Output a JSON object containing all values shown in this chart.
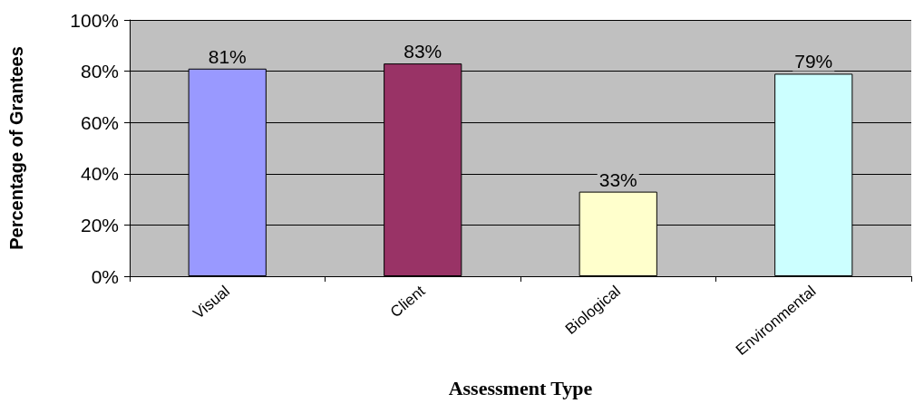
{
  "chart_data": {
    "type": "bar",
    "xlabel": "Assessment Type",
    "ylabel": "Percentage of Grantees",
    "categories": [
      "Visual",
      "Client",
      "Biological",
      "Environmental"
    ],
    "values": [
      81,
      83,
      33,
      79
    ],
    "colors": [
      "#9999ff",
      "#993366",
      "#ffffcc",
      "#ccffff"
    ],
    "value_labels": [
      "81%",
      "83%",
      "33%",
      "79%"
    ],
    "ylim": [
      0,
      100
    ],
    "yticks": [
      {
        "value": 0,
        "label": "0%"
      },
      {
        "value": 20,
        "label": "20%"
      },
      {
        "value": 40,
        "label": "40%"
      },
      {
        "value": 60,
        "label": "60%"
      },
      {
        "value": 80,
        "label": "80%"
      },
      {
        "value": 100,
        "label": "100%"
      }
    ],
    "grid": "y"
  }
}
